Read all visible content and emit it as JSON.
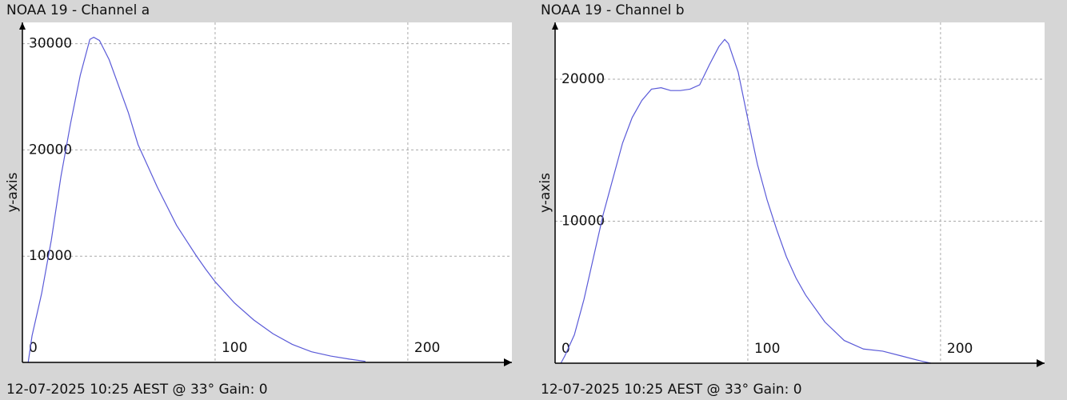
{
  "chart_data": [
    {
      "type": "line",
      "title": "NOAA 19 - Channel a",
      "ylabel": "y-axis",
      "footer": "12-07-2025 10:25 AEST @ 33° Gain: 0",
      "x": [
        3,
        5,
        10,
        15,
        20,
        25,
        30,
        35,
        37,
        40,
        45,
        50,
        55,
        60,
        65,
        70,
        75,
        80,
        85,
        90,
        95,
        100,
        110,
        120,
        130,
        140,
        150,
        160,
        170,
        178
      ],
      "series": [
        {
          "name": "Channel a",
          "color": "#5a5ad8",
          "values": [
            0,
            2500,
            6500,
            11500,
            17500,
            22500,
            27000,
            30400,
            30600,
            30300,
            28500,
            26000,
            23500,
            20500,
            18500,
            16500,
            14700,
            12900,
            11500,
            10100,
            8800,
            7600,
            5600,
            4000,
            2700,
            1700,
            1000,
            600,
            300,
            100
          ]
        }
      ],
      "xlim": [
        0,
        254
      ],
      "ylim": [
        0,
        32000
      ],
      "xticks": [
        0,
        100,
        200
      ],
      "yticks": [
        10000,
        20000,
        30000
      ],
      "grid": true
    },
    {
      "type": "line",
      "title": "NOAA 19 - Channel b",
      "ylabel": "y-axis",
      "footer": "12-07-2025 10:25 AEST @ 33° Gain: 0",
      "x": [
        3,
        5,
        10,
        15,
        20,
        25,
        30,
        35,
        40,
        45,
        50,
        55,
        60,
        65,
        70,
        75,
        80,
        85,
        88,
        90,
        95,
        100,
        105,
        110,
        115,
        120,
        125,
        130,
        140,
        150,
        160,
        170,
        180,
        190,
        195
      ],
      "series": [
        {
          "name": "Channel b",
          "color": "#5a5ad8",
          "values": [
            0,
            500,
            2000,
            4500,
            7500,
            10500,
            13000,
            15500,
            17300,
            18500,
            19300,
            19400,
            19200,
            19200,
            19300,
            19600,
            21000,
            22300,
            22800,
            22500,
            20500,
            17200,
            14000,
            11500,
            9400,
            7500,
            6000,
            4800,
            2900,
            1600,
            1000,
            850,
            500,
            150,
            0
          ]
        }
      ],
      "xlim": [
        0,
        254
      ],
      "ylim": [
        0,
        24000
      ],
      "xticks": [
        0,
        100,
        200
      ],
      "yticks": [
        10000,
        20000
      ],
      "grid": true
    }
  ]
}
